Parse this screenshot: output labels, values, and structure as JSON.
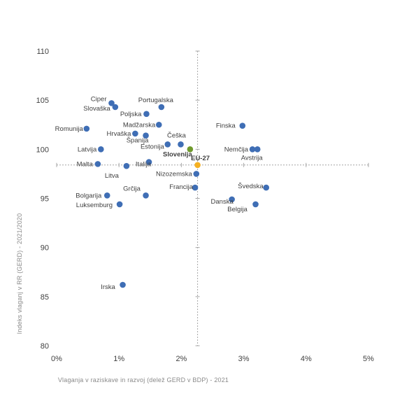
{
  "chart_data": {
    "type": "scatter",
    "xlabel": "Vlaganja v raziskave in razvoj (delež GERD v BDP) - 2021",
    "ylabel": "Indeks vlaganj v RR (GERD) - 2021/2020",
    "xlim": [
      0,
      5
    ],
    "ylim": [
      80,
      110
    ],
    "x_ticks": [
      "0%",
      "1%",
      "2%",
      "3%",
      "4%",
      "5%"
    ],
    "y_ticks": [
      "80",
      "85",
      "90",
      "95",
      "100",
      "105",
      "110"
    ],
    "reference_lines": {
      "x": 2.26,
      "y": 98.4
    },
    "colors": {
      "default": "#3f6eb5",
      "slovenia": "#6f9a2c",
      "eu": "#f5b021",
      "ref_line": "#a6a6a6"
    },
    "points": [
      {
        "label": "Ciper",
        "x": 0.88,
        "y": 104.7
      },
      {
        "label": "Slovaška",
        "x": 0.94,
        "y": 104.3
      },
      {
        "label": "Portugalska",
        "x": 1.68,
        "y": 104.3
      },
      {
        "label": "Poljska",
        "x": 1.44,
        "y": 103.6
      },
      {
        "label": "Madžarska",
        "x": 1.64,
        "y": 102.5
      },
      {
        "label": "Romunija",
        "x": 0.48,
        "y": 102.1
      },
      {
        "label": "Finska",
        "x": 2.98,
        "y": 102.4
      },
      {
        "label": "Hrvaška",
        "x": 1.26,
        "y": 101.6
      },
      {
        "label": "Španija",
        "x": 1.43,
        "y": 101.4
      },
      {
        "label": "Češka",
        "x": 1.99,
        "y": 100.5
      },
      {
        "label": "Estonija",
        "x": 1.78,
        "y": 100.5
      },
      {
        "label": "Latvija",
        "x": 0.71,
        "y": 100.0
      },
      {
        "label": "Nemčija",
        "x": 3.14,
        "y": 100.0
      },
      {
        "label": "Avstrija",
        "x": 3.22,
        "y": 100.0
      },
      {
        "label": "Slovenija",
        "x": 2.14,
        "y": 100.0
      },
      {
        "label": "EU-27",
        "x": 2.26,
        "y": 98.4
      },
      {
        "label": "Italija",
        "x": 1.48,
        "y": 98.7
      },
      {
        "label": "Malta",
        "x": 0.66,
        "y": 98.5
      },
      {
        "label": "Litva",
        "x": 1.12,
        "y": 98.3
      },
      {
        "label": "Nizozemska",
        "x": 2.24,
        "y": 97.5
      },
      {
        "label": "Francija",
        "x": 2.22,
        "y": 96.1
      },
      {
        "label": "Švedska",
        "x": 3.36,
        "y": 96.1
      },
      {
        "label": "Grčija",
        "x": 1.43,
        "y": 95.3
      },
      {
        "label": "Bolgarija",
        "x": 0.81,
        "y": 95.3
      },
      {
        "label": "Danska",
        "x": 2.81,
        "y": 94.9
      },
      {
        "label": "Luksemburg",
        "x": 1.01,
        "y": 94.4
      },
      {
        "label": "Belgija",
        "x": 3.19,
        "y": 94.4
      },
      {
        "label": "Irska",
        "x": 1.06,
        "y": 86.2
      }
    ]
  }
}
